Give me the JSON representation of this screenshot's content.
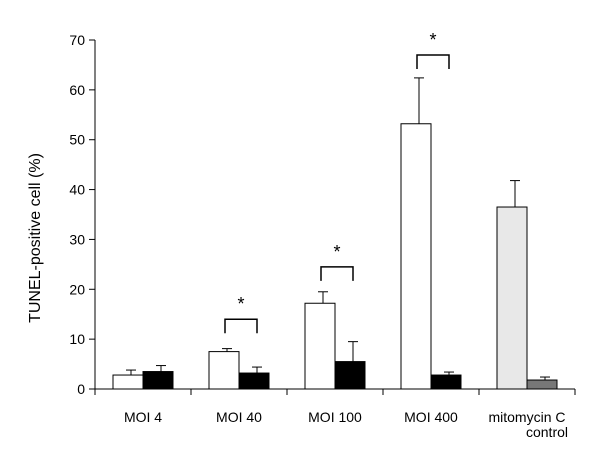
{
  "chart_data": {
    "type": "bar",
    "title": "",
    "xlabel": "",
    "ylabel": "TUNEL-positive cell (%)",
    "ylim": [
      0,
      70
    ],
    "yticks": [
      0,
      10,
      20,
      30,
      40,
      50,
      60,
      70
    ],
    "categories": [
      {
        "line1": "MOI 4",
        "line2": ""
      },
      {
        "line1": "MOI 40",
        "line2": ""
      },
      {
        "line1": "MOI 100",
        "line2": ""
      },
      {
        "line1": "MOI 400",
        "line2": ""
      },
      {
        "line1": "mitomycin C",
        "line2": "control"
      }
    ],
    "bars": [
      [
        {
          "value": 2.8,
          "error": 1.0,
          "color": "#ffffff"
        },
        {
          "value": 3.5,
          "error": 1.2,
          "color": "#000000"
        }
      ],
      [
        {
          "value": 7.5,
          "error": 0.6,
          "color": "#ffffff"
        },
        {
          "value": 3.2,
          "error": 1.2,
          "color": "#000000"
        }
      ],
      [
        {
          "value": 17.2,
          "error": 2.3,
          "color": "#ffffff"
        },
        {
          "value": 5.5,
          "error": 4.0,
          "color": "#000000"
        }
      ],
      [
        {
          "value": 53.2,
          "error": 9.2,
          "color": "#ffffff"
        },
        {
          "value": 2.8,
          "error": 0.6,
          "color": "#000000"
        }
      ],
      [
        {
          "value": 36.5,
          "error": 5.3,
          "color": "#e8e8e8"
        },
        {
          "value": 1.8,
          "error": 0.6,
          "color": "#777777"
        }
      ]
    ],
    "significance": [
      {
        "group": 1,
        "y": 14,
        "label": "*"
      },
      {
        "group": 2,
        "y": 24.5,
        "label": "*"
      },
      {
        "group": 3,
        "y": 67,
        "label": "*"
      }
    ]
  }
}
